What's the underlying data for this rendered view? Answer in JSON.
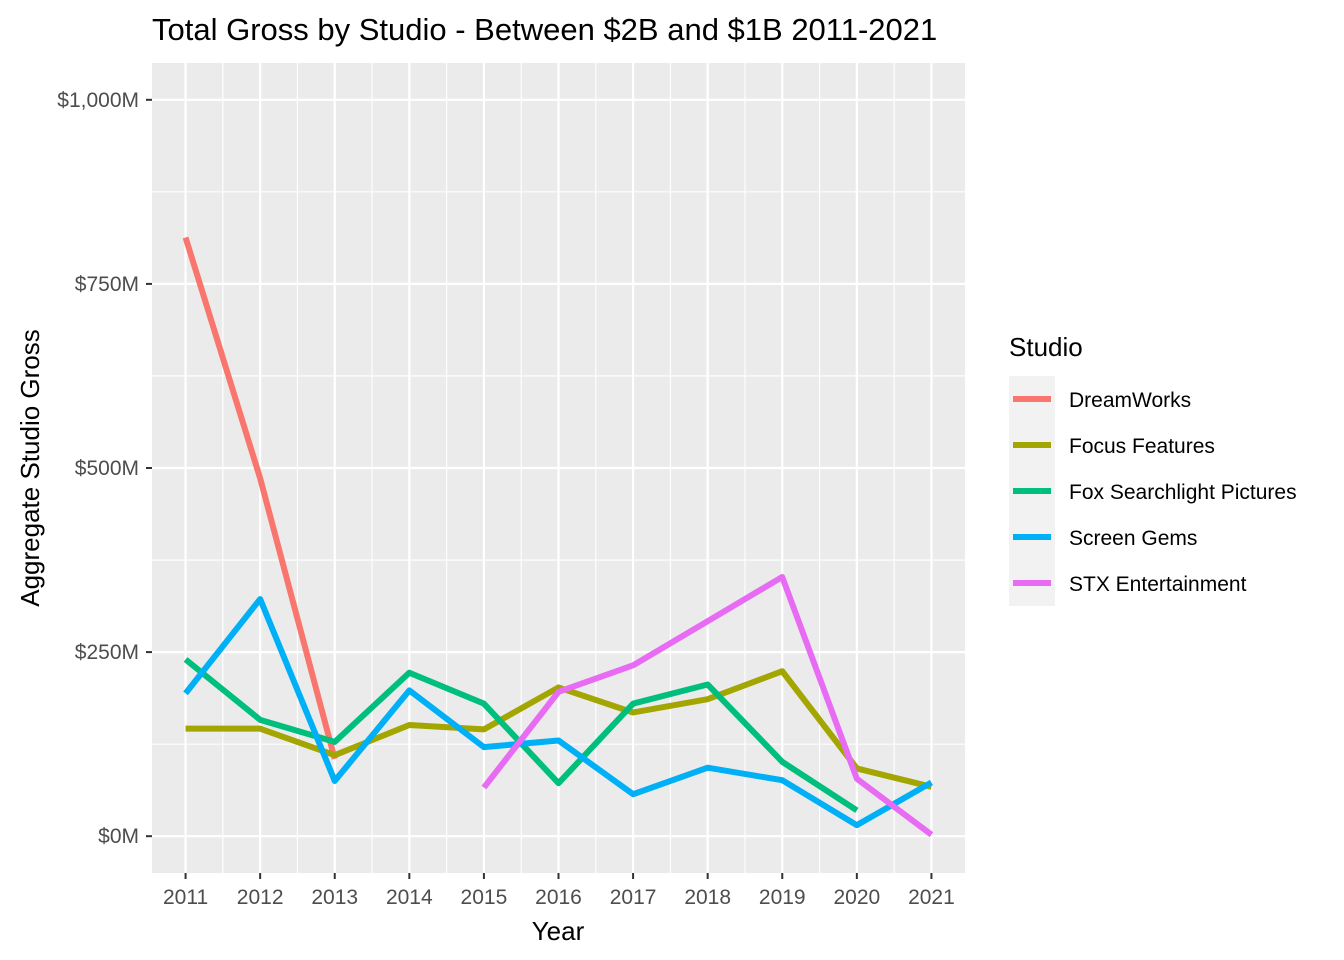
{
  "chart_data": {
    "type": "line",
    "title": "Total Gross by Studio - Between $2B and $1B 2011-2021",
    "xlabel": "Year",
    "ylabel": "Aggregate Studio Gross",
    "x": [
      2011,
      2012,
      2013,
      2014,
      2015,
      2016,
      2017,
      2018,
      2019,
      2020,
      2021
    ],
    "x_tick_labels": [
      "2011",
      "2012",
      "2013",
      "2014",
      "2015",
      "2016",
      "2017",
      "2018",
      "2019",
      "2020",
      "2021"
    ],
    "xlim": [
      2010.55,
      2021.45
    ],
    "ylim": [
      -50,
      1050
    ],
    "y_ticks": [
      0,
      250,
      500,
      750,
      1000
    ],
    "y_tick_labels": [
      "$0M",
      "$250M",
      "$500M",
      "$750M",
      "$1,000M"
    ],
    "y_unit": "millions USD",
    "grid": true,
    "background": "#ebebeb",
    "legend": {
      "title": "Studio",
      "position": "right"
    },
    "series": [
      {
        "name": "DreamWorks",
        "color": "#f8766d",
        "points": [
          [
            2011,
            813
          ],
          [
            2012,
            486
          ],
          [
            2013,
            105
          ]
        ]
      },
      {
        "name": "Focus Features",
        "color": "#a3a500",
        "points": [
          [
            2011,
            146
          ],
          [
            2012,
            146
          ],
          [
            2013,
            110
          ],
          [
            2014,
            151
          ],
          [
            2015,
            145
          ],
          [
            2016,
            202
          ],
          [
            2017,
            168
          ],
          [
            2018,
            186
          ],
          [
            2019,
            224
          ],
          [
            2020,
            92
          ],
          [
            2021,
            67
          ]
        ]
      },
      {
        "name": "Fox Searchlight Pictures",
        "color": "#00bf7d",
        "points": [
          [
            2011,
            240
          ],
          [
            2012,
            158
          ],
          [
            2013,
            128
          ],
          [
            2014,
            222
          ],
          [
            2015,
            180
          ],
          [
            2016,
            72
          ],
          [
            2017,
            180
          ],
          [
            2018,
            206
          ],
          [
            2019,
            101
          ],
          [
            2020,
            35
          ]
        ]
      },
      {
        "name": "Screen Gems",
        "color": "#00b0f6",
        "points": [
          [
            2011,
            194
          ],
          [
            2012,
            322
          ],
          [
            2013,
            75
          ],
          [
            2014,
            198
          ],
          [
            2015,
            121
          ],
          [
            2016,
            130
          ],
          [
            2017,
            57
          ],
          [
            2018,
            93
          ],
          [
            2019,
            76
          ],
          [
            2020,
            15
          ],
          [
            2021,
            73
          ]
        ]
      },
      {
        "name": "STX Entertainment",
        "color": "#e76bf3",
        "points": [
          [
            2015,
            66
          ],
          [
            2016,
            196
          ],
          [
            2017,
            232
          ],
          [
            2018,
            292
          ],
          [
            2019,
            352
          ],
          [
            2020,
            78
          ],
          [
            2021,
            2
          ]
        ]
      }
    ]
  }
}
